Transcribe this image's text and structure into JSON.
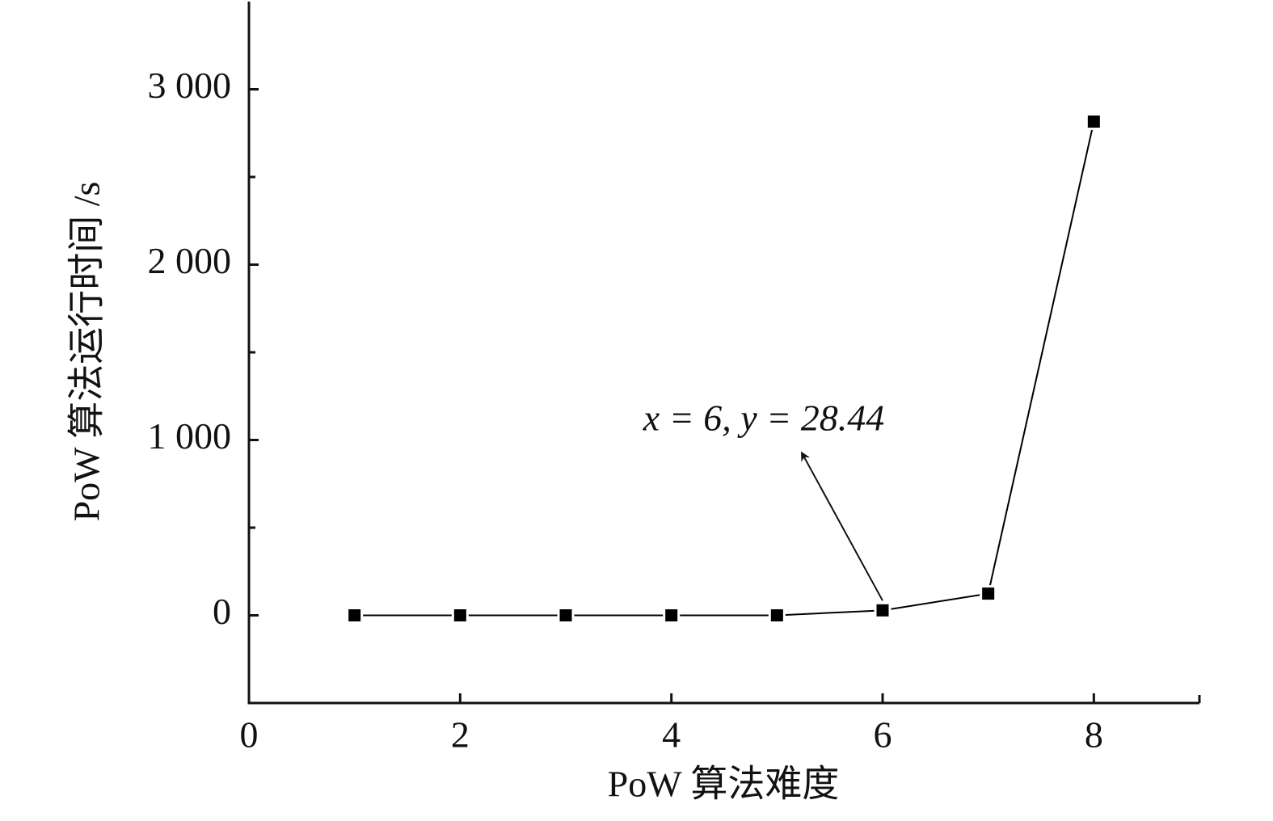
{
  "chart_data": {
    "type": "line",
    "x_label": "PoW 算法难度",
    "y_label": "PoW 算法运行时间 /s",
    "x": [
      1,
      2,
      3,
      4,
      5,
      6,
      7,
      8
    ],
    "values": [
      0,
      0,
      0,
      0,
      0,
      28.44,
      124,
      2816
    ],
    "color": "#000000",
    "marker": "square",
    "xlim": [
      0,
      9
    ],
    "xticks": [
      0,
      2,
      4,
      6,
      8
    ],
    "ylim": [
      -500,
      3500
    ],
    "yticks": [
      0,
      {
        "value": 1000,
        "label": "1 000"
      },
      {
        "value": 2000,
        "label": "2 000"
      },
      {
        "value": 3000,
        "label": "3 000"
      }
    ],
    "yminorticks": [
      500,
      1500,
      2500
    ],
    "annotation": "x = 6, y = 28.44"
  }
}
